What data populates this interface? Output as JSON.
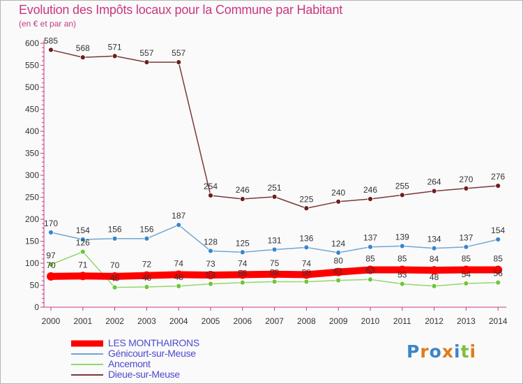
{
  "title": "Evolution des Impôts locaux pour la Commune par Habitant",
  "subtitle": "(en € et par an)",
  "logo_text": "Proxiti",
  "chart_data": {
    "type": "line",
    "title": "Evolution des Impôts locaux pour la Commune par Habitant",
    "subtitle": "(en € et par an)",
    "x": [
      "2000",
      "2001",
      "2002",
      "2003",
      "2004",
      "2005",
      "2006",
      "2007",
      "2008",
      "2009",
      "2010",
      "2011",
      "2012",
      "2013",
      "2014"
    ],
    "ylim": [
      0,
      600
    ],
    "yticks": [
      0,
      50,
      100,
      150,
      200,
      250,
      300,
      350,
      400,
      450,
      500,
      550,
      600
    ],
    "grid": false,
    "legend_position": "bottom-left",
    "series": [
      {
        "name": "LES MONTHAIRONS",
        "color": "#ff0000",
        "marker": "#ff0000",
        "thick": true,
        "values": [
          70,
          71,
          70,
          72,
          74,
          73,
          74,
          75,
          74,
          80,
          85,
          85,
          84,
          85,
          85
        ]
      },
      {
        "name": "Génicourt-sur-Meuse",
        "color": "#6fa7d4",
        "marker": "#3a86c8",
        "values": [
          170,
          154,
          156,
          156,
          187,
          128,
          125,
          131,
          136,
          124,
          137,
          139,
          134,
          137,
          154
        ]
      },
      {
        "name": "Ancemont",
        "color": "#90d86a",
        "marker": "#6cc63a",
        "values": [
          97,
          126,
          45,
          46,
          48,
          53,
          56,
          58,
          58,
          61,
          63,
          53,
          48,
          54,
          56
        ]
      },
      {
        "name": "Dieue-sur-Meuse",
        "color": "#7a3838",
        "marker": "#6b1f1f",
        "values": [
          585,
          568,
          571,
          557,
          557,
          254,
          246,
          251,
          225,
          240,
          246,
          255,
          264,
          270,
          276
        ]
      }
    ],
    "data_labels": {
      "LES MONTHAIRONS": [
        "70",
        "71",
        "70",
        "72",
        "74",
        "73",
        "74",
        "75",
        "74",
        "80",
        "85",
        "85",
        "84",
        "85",
        "85"
      ],
      "Génicourt-sur-Meuse": [
        "170",
        "154",
        "156",
        "156",
        "187",
        "128",
        "125",
        "131",
        "136",
        "124",
        "137",
        "139",
        "134",
        "137",
        "154"
      ],
      "Ancemont": [
        "97",
        "126",
        "45",
        "46",
        "48",
        "53",
        "56",
        "58",
        "58",
        "61",
        "63",
        "53",
        "48",
        "54",
        "56"
      ],
      "Dieue-sur-Meuse": [
        "585",
        "568",
        "571",
        "557",
        "557",
        "254",
        "246",
        "251",
        "225",
        "240",
        "246",
        "255",
        "264",
        "270",
        "276"
      ]
    },
    "legend": [
      "LES MONTHAIRONS",
      "Génicourt-sur-Meuse",
      "Ancemont",
      "Dieue-sur-Meuse"
    ]
  }
}
